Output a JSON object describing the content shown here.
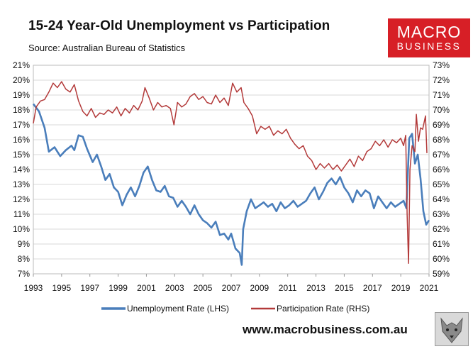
{
  "header": {
    "title": "15-24 Year-Old Unemployment vs Participation",
    "subtitle": "Source: Australian Bureau of Statistics"
  },
  "logo": {
    "line1": "MACRO",
    "line2": "BUSINESS",
    "color": "#d71f26"
  },
  "footer": {
    "url": "www.macrobusiness.com.au",
    "icon": "wolf-icon"
  },
  "chart_data": {
    "type": "line",
    "x_ticks": [
      "1993",
      "1995",
      "1997",
      "1999",
      "2001",
      "2003",
      "2005",
      "2007",
      "2009",
      "2011",
      "2013",
      "2015",
      "2017",
      "2019",
      "2021"
    ],
    "xlim": [
      1993,
      2021
    ],
    "y_left": {
      "ticks": [
        "7%",
        "8%",
        "9%",
        "10%",
        "11%",
        "12%",
        "13%",
        "14%",
        "15%",
        "16%",
        "17%",
        "18%",
        "19%",
        "20%",
        "21%"
      ],
      "ylim": [
        7,
        21
      ]
    },
    "y_right": {
      "ticks": [
        "59%",
        "60%",
        "61%",
        "62%",
        "63%",
        "64%",
        "65%",
        "66%",
        "67%",
        "68%",
        "69%",
        "70%",
        "71%",
        "72%",
        "73%"
      ],
      "ylim": [
        59,
        73
      ]
    },
    "grid": true,
    "legend_position": "bottom",
    "series": [
      {
        "name": "Unemployment Rate (LHS)",
        "axis": "left",
        "color": "#4a7ebb",
        "points": [
          [
            1993.0,
            18.4
          ],
          [
            1993.4,
            17.9
          ],
          [
            1993.8,
            16.8
          ],
          [
            1994.1,
            15.2
          ],
          [
            1994.5,
            15.5
          ],
          [
            1994.9,
            14.9
          ],
          [
            1995.3,
            15.3
          ],
          [
            1995.7,
            15.6
          ],
          [
            1995.9,
            15.3
          ],
          [
            1996.2,
            16.3
          ],
          [
            1996.5,
            16.2
          ],
          [
            1996.8,
            15.4
          ],
          [
            1997.2,
            14.5
          ],
          [
            1997.5,
            15.0
          ],
          [
            1997.8,
            14.2
          ],
          [
            1998.1,
            13.3
          ],
          [
            1998.4,
            13.7
          ],
          [
            1998.7,
            12.8
          ],
          [
            1999.0,
            12.5
          ],
          [
            1999.3,
            11.6
          ],
          [
            1999.6,
            12.3
          ],
          [
            1999.9,
            12.8
          ],
          [
            2000.2,
            12.2
          ],
          [
            2000.5,
            12.9
          ],
          [
            2000.8,
            13.8
          ],
          [
            2001.1,
            14.2
          ],
          [
            2001.4,
            13.3
          ],
          [
            2001.7,
            12.6
          ],
          [
            2002.0,
            12.5
          ],
          [
            2002.3,
            12.9
          ],
          [
            2002.6,
            12.2
          ],
          [
            2002.9,
            12.1
          ],
          [
            2003.2,
            11.5
          ],
          [
            2003.5,
            11.9
          ],
          [
            2003.8,
            11.5
          ],
          [
            2004.1,
            11.0
          ],
          [
            2004.4,
            11.6
          ],
          [
            2004.7,
            11.0
          ],
          [
            2005.0,
            10.6
          ],
          [
            2005.3,
            10.4
          ],
          [
            2005.6,
            10.1
          ],
          [
            2005.9,
            10.5
          ],
          [
            2006.2,
            9.6
          ],
          [
            2006.5,
            9.7
          ],
          [
            2006.8,
            9.3
          ],
          [
            2007.0,
            9.7
          ],
          [
            2007.3,
            8.7
          ],
          [
            2007.6,
            8.4
          ],
          [
            2007.75,
            7.6
          ],
          [
            2007.85,
            10.0
          ],
          [
            2008.1,
            11.2
          ],
          [
            2008.4,
            12.0
          ],
          [
            2008.7,
            11.4
          ],
          [
            2009.0,
            11.6
          ],
          [
            2009.3,
            11.8
          ],
          [
            2009.6,
            11.5
          ],
          [
            2009.9,
            11.7
          ],
          [
            2010.2,
            11.2
          ],
          [
            2010.5,
            11.8
          ],
          [
            2010.8,
            11.4
          ],
          [
            2011.1,
            11.6
          ],
          [
            2011.4,
            11.9
          ],
          [
            2011.7,
            11.5
          ],
          [
            2012.0,
            11.7
          ],
          [
            2012.3,
            11.9
          ],
          [
            2012.6,
            12.4
          ],
          [
            2012.9,
            12.8
          ],
          [
            2013.2,
            12.0
          ],
          [
            2013.5,
            12.5
          ],
          [
            2013.8,
            13.1
          ],
          [
            2014.1,
            13.4
          ],
          [
            2014.4,
            13.0
          ],
          [
            2014.7,
            13.5
          ],
          [
            2015.0,
            12.8
          ],
          [
            2015.3,
            12.4
          ],
          [
            2015.6,
            11.8
          ],
          [
            2015.9,
            12.6
          ],
          [
            2016.2,
            12.2
          ],
          [
            2016.5,
            12.6
          ],
          [
            2016.8,
            12.4
          ],
          [
            2017.1,
            11.4
          ],
          [
            2017.4,
            12.2
          ],
          [
            2017.7,
            11.8
          ],
          [
            2018.0,
            11.4
          ],
          [
            2018.3,
            11.8
          ],
          [
            2018.6,
            11.5
          ],
          [
            2018.9,
            11.7
          ],
          [
            2019.2,
            11.9
          ],
          [
            2019.4,
            11.4
          ],
          [
            2019.6,
            16.1
          ],
          [
            2019.8,
            16.4
          ],
          [
            2020.0,
            14.4
          ],
          [
            2020.2,
            15.0
          ],
          [
            2020.4,
            13.4
          ],
          [
            2020.6,
            11.2
          ],
          [
            2020.8,
            10.3
          ],
          [
            2021.0,
            10.6
          ]
        ]
      },
      {
        "name": "Participation Rate (RHS)",
        "axis": "right",
        "color": "#b33a3a",
        "points": [
          [
            1993.0,
            69.1
          ],
          [
            1993.2,
            70.2
          ],
          [
            1993.5,
            70.6
          ],
          [
            1993.8,
            70.7
          ],
          [
            1994.1,
            71.2
          ],
          [
            1994.4,
            71.8
          ],
          [
            1994.7,
            71.5
          ],
          [
            1995.0,
            71.9
          ],
          [
            1995.3,
            71.4
          ],
          [
            1995.6,
            71.2
          ],
          [
            1995.9,
            71.7
          ],
          [
            1996.2,
            70.6
          ],
          [
            1996.5,
            69.9
          ],
          [
            1996.8,
            69.6
          ],
          [
            1997.1,
            70.1
          ],
          [
            1997.4,
            69.5
          ],
          [
            1997.7,
            69.8
          ],
          [
            1998.0,
            69.7
          ],
          [
            1998.3,
            70.0
          ],
          [
            1998.6,
            69.8
          ],
          [
            1998.9,
            70.2
          ],
          [
            1999.2,
            69.6
          ],
          [
            1999.5,
            70.1
          ],
          [
            1999.8,
            69.8
          ],
          [
            2000.1,
            70.3
          ],
          [
            2000.4,
            70.0
          ],
          [
            2000.7,
            70.6
          ],
          [
            2000.9,
            71.5
          ],
          [
            2001.2,
            70.8
          ],
          [
            2001.5,
            70.0
          ],
          [
            2001.8,
            70.5
          ],
          [
            2002.1,
            70.2
          ],
          [
            2002.4,
            70.3
          ],
          [
            2002.7,
            70.1
          ],
          [
            2002.95,
            69.0
          ],
          [
            2003.2,
            70.5
          ],
          [
            2003.5,
            70.2
          ],
          [
            2003.8,
            70.4
          ],
          [
            2004.1,
            70.9
          ],
          [
            2004.4,
            71.1
          ],
          [
            2004.7,
            70.7
          ],
          [
            2005.0,
            70.9
          ],
          [
            2005.3,
            70.5
          ],
          [
            2005.6,
            70.4
          ],
          [
            2005.9,
            71.0
          ],
          [
            2006.2,
            70.5
          ],
          [
            2006.5,
            70.8
          ],
          [
            2006.8,
            70.3
          ],
          [
            2007.1,
            71.8
          ],
          [
            2007.4,
            71.2
          ],
          [
            2007.7,
            71.5
          ],
          [
            2007.9,
            70.5
          ],
          [
            2008.2,
            70.1
          ],
          [
            2008.5,
            69.6
          ],
          [
            2008.8,
            68.4
          ],
          [
            2009.1,
            68.9
          ],
          [
            2009.4,
            68.7
          ],
          [
            2009.7,
            68.9
          ],
          [
            2010.0,
            68.3
          ],
          [
            2010.3,
            68.6
          ],
          [
            2010.6,
            68.4
          ],
          [
            2010.9,
            68.7
          ],
          [
            2011.2,
            68.1
          ],
          [
            2011.5,
            67.7
          ],
          [
            2011.8,
            67.4
          ],
          [
            2012.1,
            67.6
          ],
          [
            2012.4,
            66.9
          ],
          [
            2012.7,
            66.6
          ],
          [
            2013.0,
            66.0
          ],
          [
            2013.3,
            66.4
          ],
          [
            2013.6,
            66.1
          ],
          [
            2013.9,
            66.4
          ],
          [
            2014.2,
            66.0
          ],
          [
            2014.5,
            66.3
          ],
          [
            2014.8,
            65.9
          ],
          [
            2015.1,
            66.3
          ],
          [
            2015.4,
            66.7
          ],
          [
            2015.7,
            66.2
          ],
          [
            2016.0,
            66.9
          ],
          [
            2016.3,
            66.6
          ],
          [
            2016.6,
            67.2
          ],
          [
            2016.9,
            67.4
          ],
          [
            2017.2,
            67.9
          ],
          [
            2017.5,
            67.6
          ],
          [
            2017.8,
            68.0
          ],
          [
            2018.1,
            67.5
          ],
          [
            2018.4,
            68.0
          ],
          [
            2018.7,
            67.8
          ],
          [
            2019.0,
            68.1
          ],
          [
            2019.2,
            67.6
          ],
          [
            2019.35,
            68.3
          ],
          [
            2019.45,
            63.0
          ],
          [
            2019.55,
            59.7
          ],
          [
            2019.65,
            66.0
          ],
          [
            2019.8,
            67.6
          ],
          [
            2020.0,
            67.2
          ],
          [
            2020.1,
            69.7
          ],
          [
            2020.25,
            67.9
          ],
          [
            2020.4,
            68.8
          ],
          [
            2020.55,
            68.7
          ],
          [
            2020.75,
            69.6
          ],
          [
            2020.85,
            67.1
          ]
        ]
      }
    ]
  }
}
